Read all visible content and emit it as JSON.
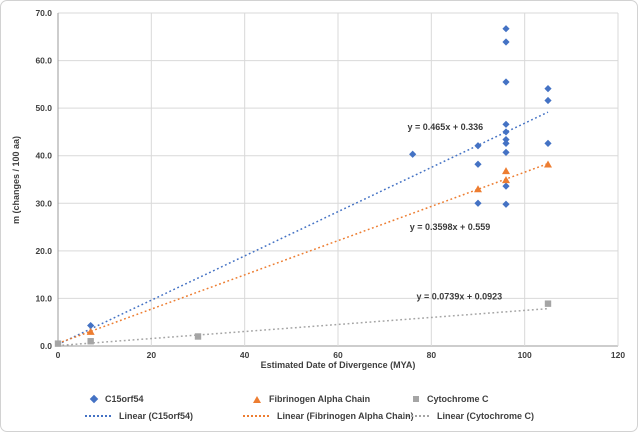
{
  "chart_data": {
    "type": "scatter",
    "title": "",
    "xlabel": "Estimated Date of Divergence (MYA)",
    "ylabel": "m (changes / 100 aa)",
    "xlim": [
      0,
      120
    ],
    "xtick_step": 20,
    "ylim": [
      0,
      70
    ],
    "ytick_step": 10,
    "grid": true,
    "legend_position": "bottom",
    "colors": {
      "gridline": "#d9d9d9",
      "axis_line": "#9b9b9b",
      "text": "#3f3f3f"
    },
    "series": [
      {
        "name": "C15orf54",
        "marker": "diamond",
        "color": "#4472C4",
        "points": [
          [
            7,
            4.3
          ],
          [
            76,
            40.3
          ],
          [
            90,
            42.1
          ],
          [
            90,
            38.2
          ],
          [
            90,
            30.0
          ],
          [
            96,
            66.7
          ],
          [
            96,
            63.9
          ],
          [
            96,
            55.5
          ],
          [
            96,
            46.6
          ],
          [
            96,
            45.0
          ],
          [
            96,
            43.4
          ],
          [
            96,
            42.6
          ],
          [
            96,
            40.7
          ],
          [
            96,
            33.6
          ],
          [
            96,
            29.8
          ],
          [
            105,
            54.1
          ],
          [
            105,
            51.6
          ],
          [
            105,
            42.6
          ]
        ]
      },
      {
        "name": "Fibrinogen Alpha Chain",
        "marker": "triangle",
        "color": "#ED7D31",
        "points": [
          [
            7,
            3.0
          ],
          [
            90,
            33.0
          ],
          [
            96,
            36.8
          ],
          [
            96,
            34.9
          ],
          [
            105,
            38.2
          ]
        ]
      },
      {
        "name": "Cytochrome C",
        "marker": "square",
        "color": "#A5A5A5",
        "points": [
          [
            0,
            0.5
          ],
          [
            7,
            1.0
          ],
          [
            30,
            2.0
          ],
          [
            105,
            8.9
          ]
        ]
      }
    ],
    "trendlines": [
      {
        "series": "C15orf54",
        "label": "Linear (C15orf54)",
        "equation": "y = 0.465x + 0.336",
        "slope": 0.465,
        "intercept": 0.336,
        "x_range": [
          0,
          105
        ],
        "color": "#4472C4",
        "eq_label_at": [
          83,
          46
        ]
      },
      {
        "series": "Fibrinogen Alpha Chain",
        "label": "Linear (Fibrinogen Alpha Chain)",
        "equation": "y = 0.3598x + 0.559",
        "slope": 0.3598,
        "intercept": 0.559,
        "x_range": [
          0,
          105
        ],
        "color": "#ED7D31",
        "eq_label_at": [
          84,
          25
        ]
      },
      {
        "series": "Cytochrome C",
        "label": "Linear (Cytochrome C)",
        "equation": "y = 0.0739x + 0.0923",
        "slope": 0.0739,
        "intercept": 0.0923,
        "x_range": [
          0,
          105
        ],
        "color": "#A5A5A5",
        "eq_label_at": [
          86,
          10.4
        ]
      }
    ]
  }
}
